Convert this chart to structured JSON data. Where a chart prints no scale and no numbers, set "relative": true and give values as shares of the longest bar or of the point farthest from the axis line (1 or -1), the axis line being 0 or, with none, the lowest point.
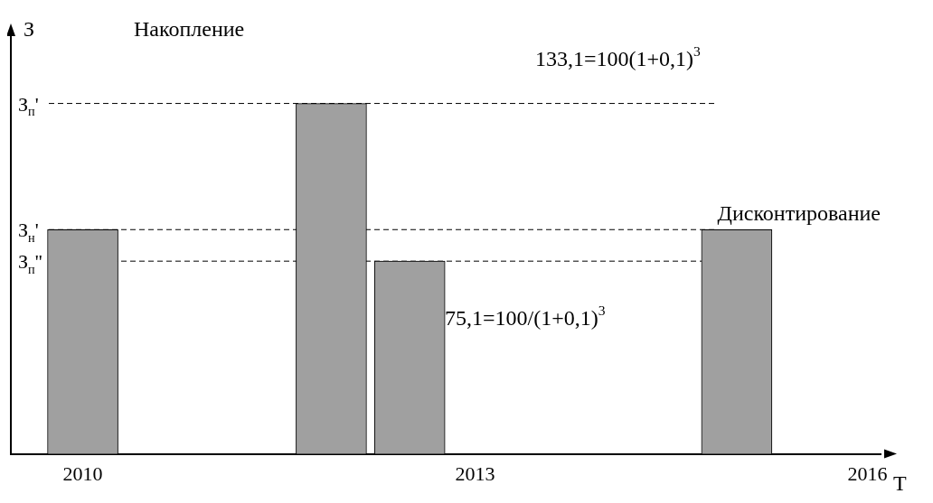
{
  "chart_data": {
    "type": "bar",
    "title": "Накопление",
    "relative": true,
    "x": [
      2010,
      2011.9,
      2012.5,
      2015.0
    ],
    "values": [
      0.64,
      1,
      0.55,
      0.64
    ],
    "color": "#a0a0a0",
    "xlim": [
      2009.45,
      2016.1
    ],
    "xticks": [
      2010,
      2013,
      2016
    ],
    "grid": false,
    "legend": false,
    "ref_lines": [
      {
        "axis": "y",
        "value": 1,
        "label": "З$_{п}$'",
        "line_style": "dashed"
      },
      {
        "axis": "y",
        "value": 0.64,
        "label": "З$_{н}$'",
        "line_style": "dashed"
      },
      {
        "axis": "y",
        "value": 0.55,
        "label": "З$_{п}$''",
        "line_style": "dashed"
      }
    ],
    "annotations": [
      "133,1=100(1+0,1)$^{3}$",
      "Дисконтирование",
      "75,1=100/(1+0,1)$^{3}$",
      "З",
      "T"
    ]
  }
}
